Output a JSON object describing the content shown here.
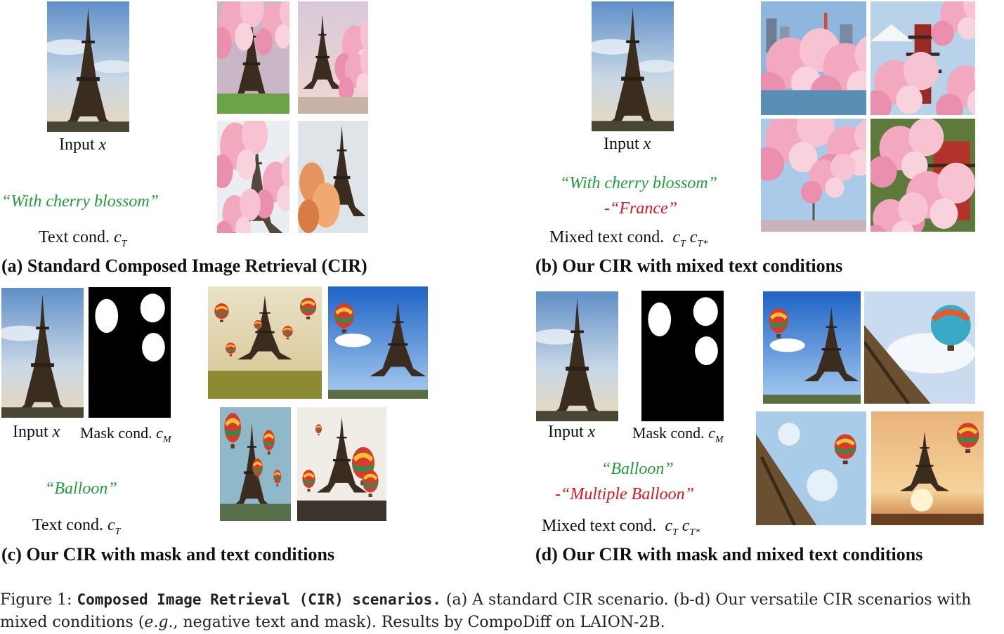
{
  "panels": {
    "a": {
      "input_label": "Input",
      "input_var": "x",
      "text_query": "“With cherry blossom”",
      "text_cond_label": "Text cond.",
      "text_cond_var": "c",
      "text_cond_sub": "T",
      "title": "(a) Standard Composed Image Retrieval (CIR)"
    },
    "b": {
      "input_label": "Input",
      "input_var": "x",
      "pos_text": "“With cherry blossom”",
      "neg_sign": "-",
      "neg_text": "“France”",
      "cond_label": "Mixed text cond.",
      "cond_var1": "c",
      "cond_sub1": "T",
      "cond_var2": "c",
      "cond_sub2": "T*",
      "title": "(b) Our CIR with mixed text conditions"
    },
    "c": {
      "input_label": "Input",
      "input_var": "x",
      "mask_label": "Mask cond.",
      "mask_var": "c",
      "mask_sub": "M",
      "text_query": "“Balloon”",
      "text_cond_label": "Text cond.",
      "text_cond_var": "c",
      "text_cond_sub": "T",
      "title": "(c) Our CIR with mask and text conditions"
    },
    "d": {
      "input_label": "Input",
      "input_var": "x",
      "mask_label": "Mask cond.",
      "mask_var": "c",
      "mask_sub": "M",
      "pos_text": "“Balloon”",
      "neg_sign": "-",
      "neg_text": "“Multiple Balloon”",
      "cond_label": "Mixed text cond.",
      "cond_var1": "c",
      "cond_sub1": "T",
      "cond_var2": "c",
      "cond_sub2": "T*",
      "title": "(d) Our CIR with mask and mixed text conditions"
    }
  },
  "caption": {
    "figure_label": "Figure 1:",
    "bold": "Composed Image Retrieval (CIR) scenarios.",
    "text1": " (a) A standard CIR scenario. (b-d) Our versatile CIR scenarios with mixed conditions (",
    "eg": "e.g.",
    "text2": ", negative text and mask). Results by CompoDiff on LAION-2B."
  },
  "colors": {
    "positive_text": "#1f9e3c",
    "negative_text": "#e0141e"
  }
}
